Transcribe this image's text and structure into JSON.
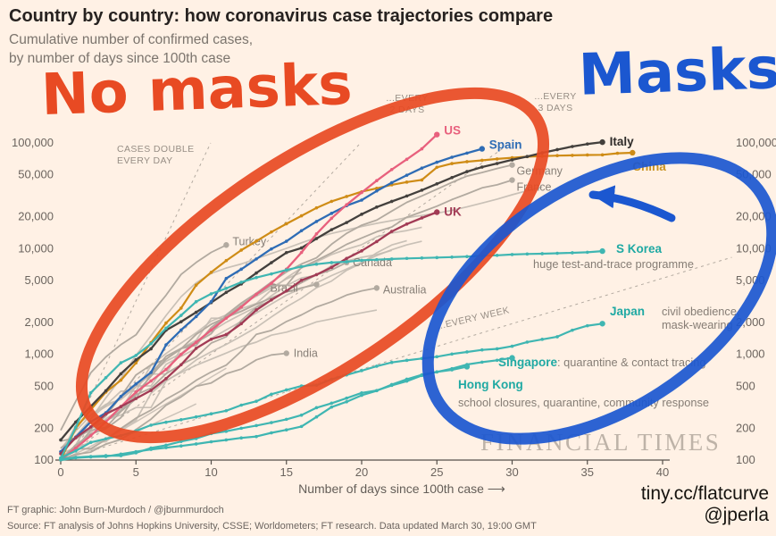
{
  "header": {
    "title": "Country by country: how coronavirus case trajectories compare",
    "subtitle1": "Cumulative number of confirmed cases,",
    "subtitle2": "by number of days since 100th case"
  },
  "annotations": {
    "no_masks_text": "No masks",
    "no_masks_color": "#e84a23",
    "masks_text": "Masks",
    "masks_color": "#1b57d0",
    "watermark": "FINANCIAL TIMES",
    "link_text": "tiny.cc/flatcurve",
    "handle_text": "@jperla"
  },
  "country_notes": {
    "skorea_label": "S Korea",
    "skorea_note": "huge test-and-trace programme",
    "japan_label": "Japan",
    "japan_note1": "civil obedience,",
    "japan_note2": "mask-wearing",
    "singapore_label": "Singapore",
    "singapore_note": ": quarantine & contact tracing",
    "hongkong_label": "Hong Kong",
    "hongkong_note": "school closures, quarantine, community response"
  },
  "axis": {
    "x_label": "Number of days since 100th case",
    "x_label_arrow": "⟶"
  },
  "footer": {
    "credit": "FT graphic: John Burn-Murdoch / @jburnmurdoch",
    "source": "Source: FT analysis of Johns Hopkins University, CSSE; Worldometers; FT research. Data updated March 30, 19:00 GMT"
  },
  "chart_data": {
    "type": "line",
    "title": "Country by country: how coronavirus case trajectories compare",
    "xlabel": "Number of days since 100th case",
    "ylabel": "Cumulative number of confirmed cases",
    "y_scale": "log",
    "x_unit": "days since 100th case",
    "x_ticks": [
      0,
      5,
      10,
      15,
      20,
      25,
      30,
      35,
      40
    ],
    "y_ticks": [
      100,
      200,
      500,
      1000,
      2000,
      5000,
      10000,
      20000,
      50000,
      100000
    ],
    "xlim": [
      0,
      44.5
    ],
    "ylim": [
      100,
      100000
    ],
    "grid": false,
    "reference_lines": [
      {
        "name": "cases-double-every-day",
        "doubling_days": 1,
        "label_line1": "CASES DOUBLE",
        "label_line2": "EVERY DAY"
      },
      {
        "name": "double-every-2-days",
        "doubling_days": 2,
        "label_line1": "...EVERY",
        "label_line2": "2 DAYS"
      },
      {
        "name": "double-every-3-days",
        "doubling_days": 3,
        "label_line1": "...EVERY",
        "label_line2": "3 DAYS"
      },
      {
        "name": "double-every-week",
        "doubling_days": 7,
        "label_line1": "...EVERY WEEK"
      }
    ],
    "series": [
      {
        "name": "grey-1",
        "color": "#c3bbb1",
        "width": 1.7,
        "opacity": 0.9,
        "values": [
          100,
          139,
          245,
          388,
          593,
          978,
          1501,
          2336,
          3513,
          4747,
          5823,
          6566,
          7161,
          8042,
          9000,
          10075,
          11364,
          12729,
          13938,
          14991,
          16169,
          17361,
          18407,
          19644,
          20610,
          21638,
          23049,
          24811,
          27017,
          29406,
          32332,
          35408,
          38309
        ]
      },
      {
        "name": "grey-2",
        "color": "#c3bbb1",
        "width": 1.7,
        "opacity": 0.9,
        "values": [
          114,
          214,
          268,
          337,
          374,
          491,
          652,
          652,
          1139,
          1359,
          2200,
          2200,
          2700,
          3028,
          4075,
          5294,
          6575,
          7474,
          8795,
          9877,
          10897,
          12928,
          14076,
          14829,
          15922
        ]
      },
      {
        "name": "grey-3",
        "color": "#c3bbb1",
        "width": 1.7,
        "opacity": 0.9,
        "values": [
          128,
          188,
          265,
          321,
          382,
          503,
          503,
          804,
          959,
          1135,
          1413,
          1705,
          2051,
          2460,
          2994,
          3631,
          4204,
          4749,
          5560,
          6412,
          7431,
          8603,
          9762,
          10866,
          11750
        ]
      },
      {
        "name": "grey-4",
        "color": "#c3bbb1",
        "width": 1.7,
        "opacity": 0.9,
        "values": [
          109,
          169,
          200,
          239,
          267,
          314,
          314,
          559,
          689,
          886,
          1058,
          1243,
          1486,
          1795,
          2257,
          2815,
          3401,
          4269,
          4937,
          6235,
          7284,
          9134,
          10836,
          11899
        ]
      },
      {
        "name": "grey-5",
        "color": "#c3bbb1",
        "width": 1.7,
        "opacity": 0.9,
        "values": [
          104,
          131,
          182,
          246,
          302,
          504,
          655,
          860,
          1018,
          1332,
          1646,
          2013,
          2388,
          2814,
          3582,
          4474,
          5283,
          5588,
          6909,
          7657,
          8271,
          8788,
          9618
        ]
      },
      {
        "name": "grey-6",
        "color": "#c3bbb1",
        "width": 1.7,
        "opacity": 0.9,
        "values": [
          112,
          169,
          245,
          331,
          448,
          448,
          785,
          1020,
          1280,
          1600,
          2060,
          2362,
          2995,
          3544,
          4268,
          5170,
          5962
        ]
      },
      {
        "name": "grey-7",
        "color": "#c3bbb1",
        "width": 1.7,
        "opacity": 0.9,
        "values": [
          117,
          129,
          149,
          149,
          197,
          238,
          428,
          566,
          673,
          790,
          900,
          1030,
          1183,
          1306,
          1518,
          1624,
          1796,
          2031,
          2161,
          2320,
          2470,
          2626
        ]
      },
      {
        "name": "grey-8",
        "color": "#c3bbb1",
        "width": 1.5,
        "opacity": 0.85,
        "values": [
          100,
          115,
          135,
          160,
          190,
          230,
          280,
          340,
          410,
          500,
          610,
          740
        ]
      },
      {
        "name": "grey-9",
        "color": "#c3bbb1",
        "width": 1.5,
        "opacity": 0.85,
        "values": [
          100,
          110,
          125,
          140,
          160,
          185,
          215,
          250,
          290,
          340
        ]
      },
      {
        "name": "Turkey",
        "color": "#b2aaa0",
        "label_color": "#877f77",
        "width": 1.8,
        "labeled": true,
        "end_dot": true,
        "label_dx": 7,
        "label_dy": 0,
        "values": [
          191,
          359,
          670,
          947,
          1236,
          1529,
          2433,
          3629,
          5698,
          7402,
          9217,
          10827
        ]
      },
      {
        "name": "Canada",
        "color": "#b2aaa0",
        "label_color": "#877f77",
        "width": 1.8,
        "labeled": true,
        "end_dot": true,
        "label_dx": 7,
        "label_dy": 4,
        "values": [
          103,
          138,
          176,
          198,
          252,
          415,
          478,
          657,
          800,
          943,
          1277,
          1469,
          2088,
          2790,
          3251,
          4018,
          4760,
          5655,
          6280,
          7398
        ]
      },
      {
        "name": "Brazil",
        "color": "#b2aaa0",
        "label_color": "#877f77",
        "width": 1.8,
        "labeled": true,
        "end_dot": true,
        "label_dx": -52,
        "label_dy": 8,
        "values": [
          151,
          162,
          200,
          234,
          291,
          428,
          621,
          904,
          1128,
          1546,
          1924,
          2247,
          2554,
          2985,
          3417,
          3904,
          4256,
          4579
        ]
      },
      {
        "name": "Australia",
        "color": "#b2aaa0",
        "label_color": "#877f77",
        "width": 1.8,
        "labeled": true,
        "end_dot": true,
        "label_dx": 7,
        "label_dy": 6,
        "values": [
          107,
          128,
          128,
          156,
          199,
          249,
          297,
          377,
          452,
          568,
          681,
          791,
          1071,
          1549,
          1682,
          2044,
          2364,
          2810,
          3143,
          3640,
          3984,
          4245
        ]
      },
      {
        "name": "India",
        "color": "#b2aaa0",
        "label_color": "#877f77",
        "width": 1.8,
        "labeled": true,
        "end_dot": true,
        "label_dx": 8,
        "label_dy": 4,
        "values": [
          102,
          113,
          119,
          142,
          156,
          194,
          244,
          330,
          396,
          499,
          536,
          657,
          727,
          887,
          987,
          1024
        ]
      },
      {
        "name": "Germany",
        "color": "#b2aaa0",
        "label_color": "#877f77",
        "width": 1.8,
        "labeled": true,
        "end_dot": true,
        "label_dx": 5,
        "label_dy": 11,
        "values": [
          130,
          159,
          196,
          262,
          400,
          639,
          795,
          902,
          1139,
          1296,
          1567,
          2369,
          3062,
          3795,
          4838,
          6012,
          7156,
          8198,
          10999,
          13957,
          16662,
          18610,
          22672,
          27436,
          31554,
          36508,
          42288,
          48582,
          52547,
          57298,
          61913
        ]
      },
      {
        "name": "France",
        "color": "#b2aaa0",
        "label_color": "#877f77",
        "width": 1.8,
        "labeled": true,
        "end_dot": true,
        "label_dx": 5,
        "label_dy": 12,
        "values": [
          100,
          130,
          191,
          204,
          288,
          380,
          656,
          959,
          1136,
          1219,
          1794,
          2293,
          2876,
          3661,
          4499,
          4499,
          6655,
          7730,
          9134,
          10995,
          12612,
          14459,
          16018,
          19856,
          22302,
          25233,
          29155,
          32964,
          37575,
          40174,
          44550
        ]
      },
      {
        "name": "China",
        "color": "#cf8c16",
        "label_color": "#c9921e",
        "width": 2.2,
        "bold": true,
        "labeled": true,
        "markers": true,
        "end_dot": true,
        "label_dx": 0,
        "label_dy": 20,
        "values": [
          100,
          200,
          300,
          440,
          570,
          830,
          1290,
          1980,
          2740,
          4520,
          5970,
          7710,
          9690,
          11790,
          14380,
          17200,
          20440,
          24320,
          28020,
          31160,
          34550,
          37200,
          40170,
          42640,
          44650,
          58800,
          63850,
          66490,
          68500,
          70550,
          72440,
          74190,
          75000,
          75890,
          76290,
          76940,
          77150,
          79800,
          80800
        ]
      },
      {
        "name": "Italy",
        "color": "#43403d",
        "label_color": "#2e2b29",
        "width": 2.3,
        "bold": true,
        "labeled": true,
        "markers": true,
        "end_dot": true,
        "label_dx": 8,
        "label_dy": 4,
        "values": [
          155,
          229,
          322,
          453,
          655,
          888,
          1128,
          1694,
          2036,
          2502,
          3089,
          3858,
          4636,
          5883,
          7375,
          9172,
          10149,
          12462,
          15113,
          17660,
          21157,
          24747,
          27980,
          31506,
          35713,
          41035,
          47021,
          53578,
          59138,
          63927,
          69176,
          74386,
          80589,
          86498,
          92472,
          97689,
          101739
        ]
      },
      {
        "name": "Spain",
        "color": "#2e6cb5",
        "width": 2.3,
        "bold": true,
        "labeled": true,
        "markers": true,
        "end_dot": true,
        "label_dx": 8,
        "label_dy": 0,
        "values": [
          120,
          165,
          230,
          280,
          400,
          525,
          675,
          1230,
          1700,
          2280,
          3150,
          5230,
          6390,
          7990,
          9940,
          11750,
          14770,
          18080,
          21570,
          25500,
          28770,
          35140,
          42060,
          49520,
          57790,
          65720,
          73240,
          80110,
          88000
        ]
      },
      {
        "name": "US",
        "color": "#e8607d",
        "width": 2.3,
        "bold": true,
        "labeled": true,
        "markers": true,
        "end_dot": true,
        "label_dx": 8,
        "label_dy": 0,
        "values": [
          100,
          130,
          170,
          230,
          320,
          440,
          560,
          720,
          1000,
          1300,
          1700,
          2200,
          2800,
          3700,
          4700,
          6400,
          9200,
          13800,
          19400,
          26000,
          34000,
          44000,
          56000,
          70000,
          88000,
          120000
        ]
      },
      {
        "name": "UK",
        "color": "#a23b55",
        "width": 2.3,
        "bold": true,
        "labeled": true,
        "markers": true,
        "end_dot": true,
        "label_dx": 8,
        "label_dy": 4,
        "values": [
          115,
          163,
          206,
          273,
          321,
          382,
          456,
          590,
          798,
          1140,
          1390,
          1540,
          1950,
          2630,
          3270,
          3980,
          5020,
          5680,
          6650,
          8080,
          9530,
          11660,
          14540,
          17090,
          19520,
          22140
        ]
      },
      {
        "name": "S Korea",
        "color": "#3fb6b2",
        "width": 2.2,
        "labeled": false,
        "markers": true,
        "end_dot": true,
        "values": [
          104,
          204,
          433,
          602,
          833,
          977,
          1261,
          1766,
          2337,
          3150,
          3736,
          4212,
          4812,
          5328,
          5766,
          6284,
          6767,
          7134,
          7382,
          7513,
          7755,
          7869,
          7979,
          8086,
          8162,
          8236,
          8320,
          8413,
          8565,
          8652,
          8799,
          8897,
          8961,
          9037,
          9137,
          9241,
          9478
        ]
      },
      {
        "name": "Japan",
        "color": "#3fb6b2",
        "width": 2.2,
        "labeled": false,
        "markers": true,
        "end_dot": true,
        "values": [
          105,
          122,
          147,
          159,
          170,
          189,
          214,
          228,
          241,
          256,
          274,
          293,
          331,
          360,
          420,
          461,
          502,
          511,
          581,
          639,
          701,
          773,
          839,
          878,
          914,
          950,
          1007,
          1054,
          1101,
          1128,
          1193,
          1307,
          1387,
          1468,
          1693,
          1866,
          1953
        ]
      },
      {
        "name": "Singapore",
        "color": "#3fb6b2",
        "width": 2.2,
        "labeled": false,
        "markers": true,
        "end_dot": true,
        "values": [
          102,
          106,
          108,
          110,
          110,
          117,
          130,
          138,
          150,
          160,
          178,
          187,
          200,
          212,
          226,
          243,
          266,
          313,
          345,
          385,
          432,
          455,
          509,
          558,
          631,
          683,
          732,
          802,
          844,
          879,
          926
        ]
      },
      {
        "name": "Hong Kong",
        "color": "#3fb6b2",
        "width": 2.2,
        "labeled": false,
        "markers": true,
        "end_dot": true,
        "values": [
          100,
          105,
          107,
          108,
          114,
          120,
          126,
          131,
          136,
          142,
          149,
          155,
          162,
          167,
          181,
          193,
          208,
          256,
          317,
          356,
          410,
          453,
          518,
          582,
          641,
          682,
          714,
          765
        ]
      }
    ]
  }
}
